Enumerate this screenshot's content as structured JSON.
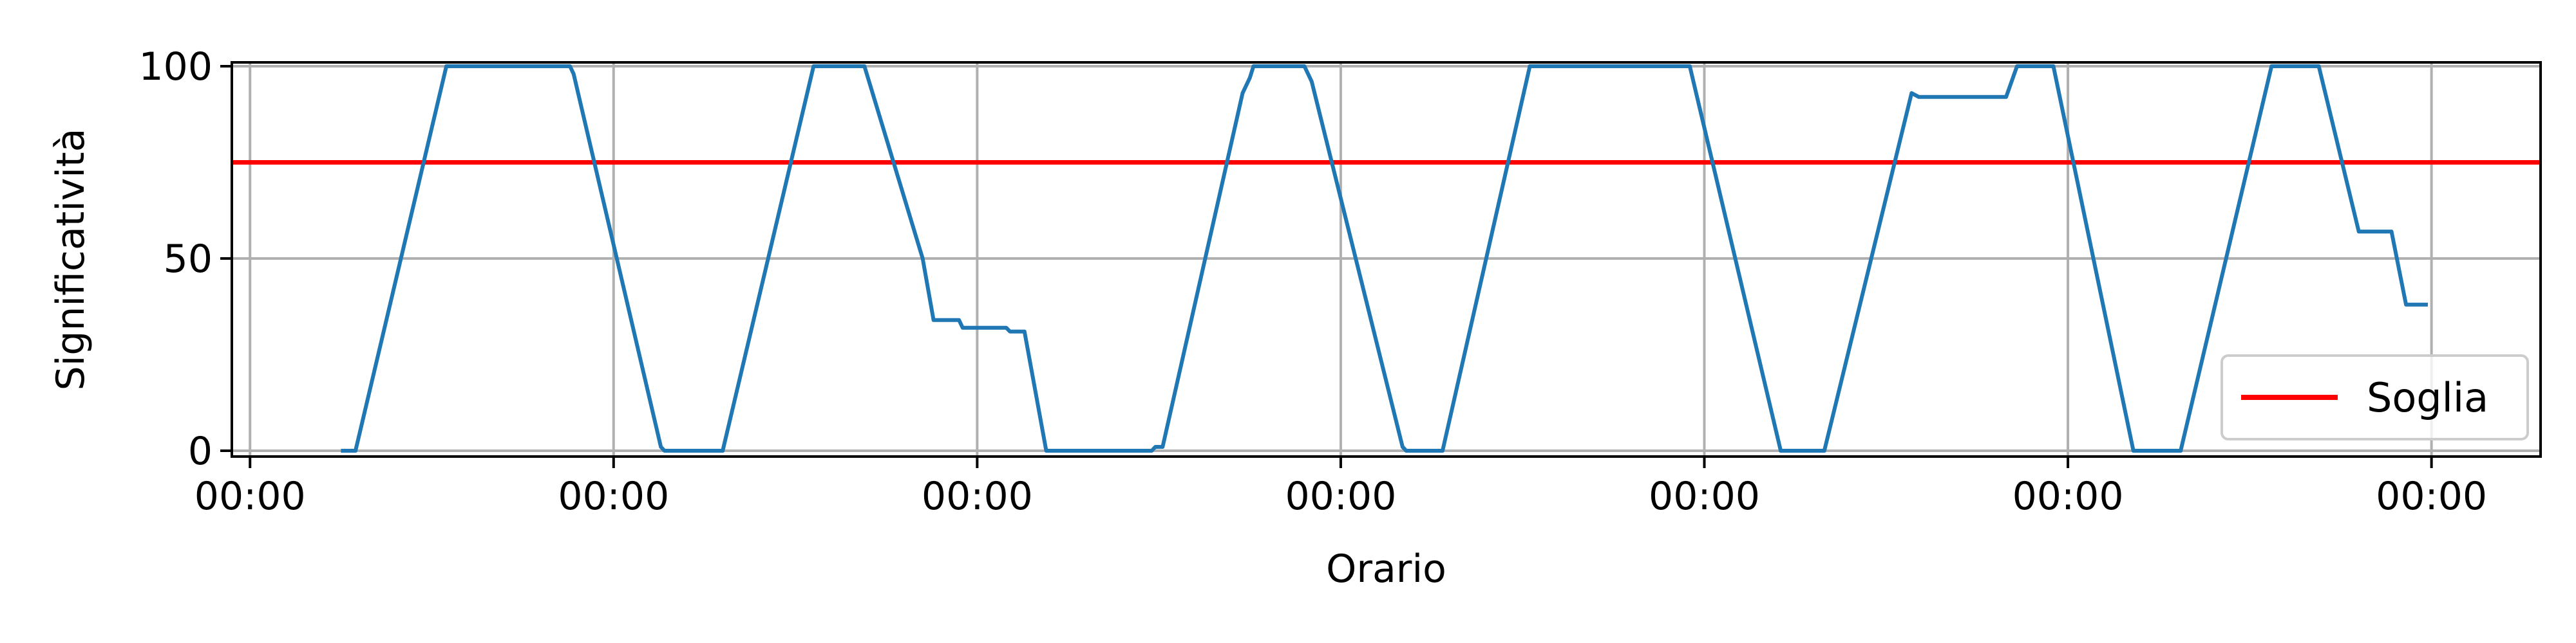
{
  "chart_data": {
    "type": "line",
    "title": "",
    "xlabel": "Orario",
    "ylabel": "Significatività",
    "xlim": [
      -0.05,
      6.3
    ],
    "ylim": [
      -1.5,
      101
    ],
    "grid": true,
    "legend_position": "bottom-right",
    "x_ticks": [
      0,
      1,
      2,
      3,
      4,
      5,
      6
    ],
    "x_tick_labels": [
      "00:00",
      "00:00",
      "00:00",
      "00:00",
      "00:00",
      "00:00",
      "00:00"
    ],
    "y_ticks": [
      0,
      50,
      100
    ],
    "y_tick_labels": [
      "0",
      "50",
      "100"
    ],
    "threshold": {
      "name": "Soglia",
      "value": 75,
      "color": "#ff0000"
    },
    "series": [
      {
        "color": "#1f77b4",
        "points": [
          [
            0.25,
            0
          ],
          [
            0.29,
            0
          ],
          [
            0.54,
            100
          ],
          [
            0.88,
            100
          ],
          [
            0.89,
            98
          ],
          [
            1.13,
            1
          ],
          [
            1.14,
            0
          ],
          [
            1.3,
            0
          ],
          [
            1.55,
            100
          ],
          [
            1.69,
            100
          ],
          [
            1.85,
            50
          ],
          [
            1.88,
            34
          ],
          [
            1.95,
            34
          ],
          [
            1.96,
            32
          ],
          [
            2.08,
            32
          ],
          [
            2.09,
            31
          ],
          [
            2.13,
            31
          ],
          [
            2.19,
            0
          ],
          [
            2.48,
            0
          ],
          [
            2.49,
            1
          ],
          [
            2.51,
            1
          ],
          [
            2.73,
            93
          ],
          [
            2.75,
            97
          ],
          [
            2.76,
            100
          ],
          [
            2.9,
            100
          ],
          [
            2.92,
            96
          ],
          [
            3.17,
            1
          ],
          [
            3.18,
            0
          ],
          [
            3.28,
            0
          ],
          [
            3.52,
            100
          ],
          [
            3.96,
            100
          ],
          [
            4.21,
            0
          ],
          [
            4.33,
            0
          ],
          [
            4.57,
            93
          ],
          [
            4.59,
            92
          ],
          [
            4.83,
            92
          ],
          [
            4.86,
            100
          ],
          [
            4.96,
            100
          ],
          [
            5.18,
            0
          ],
          [
            5.31,
            0
          ],
          [
            5.56,
            100
          ],
          [
            5.69,
            100
          ],
          [
            5.8,
            57
          ],
          [
            5.89,
            57
          ],
          [
            5.93,
            38
          ],
          [
            5.99,
            38
          ]
        ]
      }
    ]
  }
}
